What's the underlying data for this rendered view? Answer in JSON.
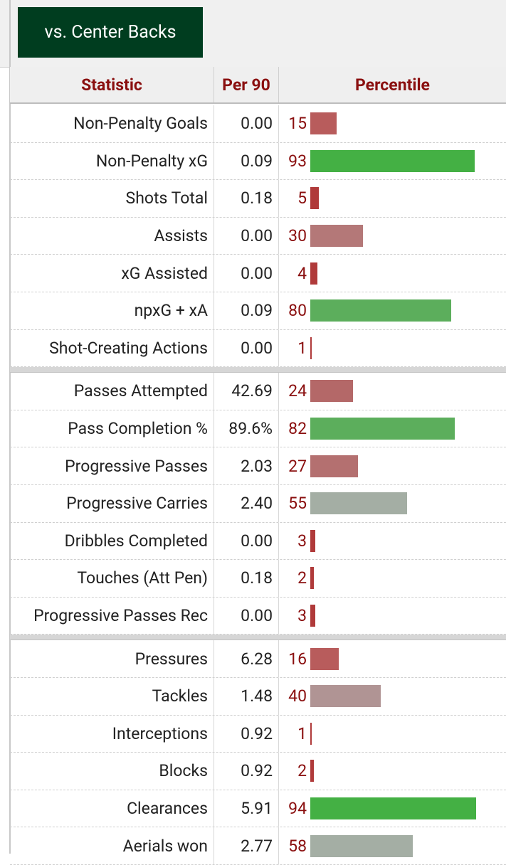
{
  "tab": {
    "label": "vs. Center Backs"
  },
  "headers": {
    "statistic": "Statistic",
    "per90": "Per 90",
    "percentile": "Percentile"
  },
  "groups": [
    [
      {
        "stat": "Non-Penalty Goals",
        "per90": "0.00",
        "pct": "15",
        "value": 15,
        "color": "#b85c5c"
      },
      {
        "stat": "Non-Penalty xG",
        "per90": "0.09",
        "pct": "93",
        "value": 93,
        "color": "#44b044"
      },
      {
        "stat": "Shots Total",
        "per90": "0.18",
        "pct": "5",
        "value": 5,
        "color": "#b03a3a"
      },
      {
        "stat": "Assists",
        "per90": "0.00",
        "pct": "30",
        "value": 30,
        "color": "#b47878"
      },
      {
        "stat": "xG Assisted",
        "per90": "0.00",
        "pct": "4",
        "value": 4,
        "color": "#b03a3a"
      },
      {
        "stat": "npxG + xA",
        "per90": "0.09",
        "pct": "80",
        "value": 80,
        "color": "#5cae5c"
      },
      {
        "stat": "Shot-Creating Actions",
        "per90": "0.00",
        "pct": "1",
        "value": 1,
        "color": "#b03a3a"
      }
    ],
    [
      {
        "stat": "Passes Attempted",
        "per90": "42.69",
        "pct": "24",
        "value": 24,
        "color": "#b46868"
      },
      {
        "stat": "Pass Completion %",
        "per90": "89.6%",
        "pct": "82",
        "value": 82,
        "color": "#5cae5c"
      },
      {
        "stat": "Progressive Passes",
        "per90": "2.03",
        "pct": "27",
        "value": 27,
        "color": "#b47070"
      },
      {
        "stat": "Progressive Carries",
        "per90": "2.40",
        "pct": "55",
        "value": 55,
        "color": "#a4aea4"
      },
      {
        "stat": "Dribbles Completed",
        "per90": "0.00",
        "pct": "3",
        "value": 3,
        "color": "#b03a3a"
      },
      {
        "stat": "Touches (Att Pen)",
        "per90": "0.18",
        "pct": "2",
        "value": 2,
        "color": "#b03a3a"
      },
      {
        "stat": "Progressive Passes Rec",
        "per90": "0.00",
        "pct": "3",
        "value": 3,
        "color": "#b03a3a"
      }
    ],
    [
      {
        "stat": "Pressures",
        "per90": "6.28",
        "pct": "16",
        "value": 16,
        "color": "#b85c5c"
      },
      {
        "stat": "Tackles",
        "per90": "1.48",
        "pct": "40",
        "value": 40,
        "color": "#b09494"
      },
      {
        "stat": "Interceptions",
        "per90": "0.92",
        "pct": "1",
        "value": 1,
        "color": "#b03a3a"
      },
      {
        "stat": "Blocks",
        "per90": "0.92",
        "pct": "2",
        "value": 2,
        "color": "#b03a3a"
      },
      {
        "stat": "Clearances",
        "per90": "5.91",
        "pct": "94",
        "value": 94,
        "color": "#44b044"
      },
      {
        "stat": "Aerials won",
        "per90": "2.77",
        "pct": "58",
        "value": 58,
        "color": "#a4aea4"
      }
    ]
  ]
}
